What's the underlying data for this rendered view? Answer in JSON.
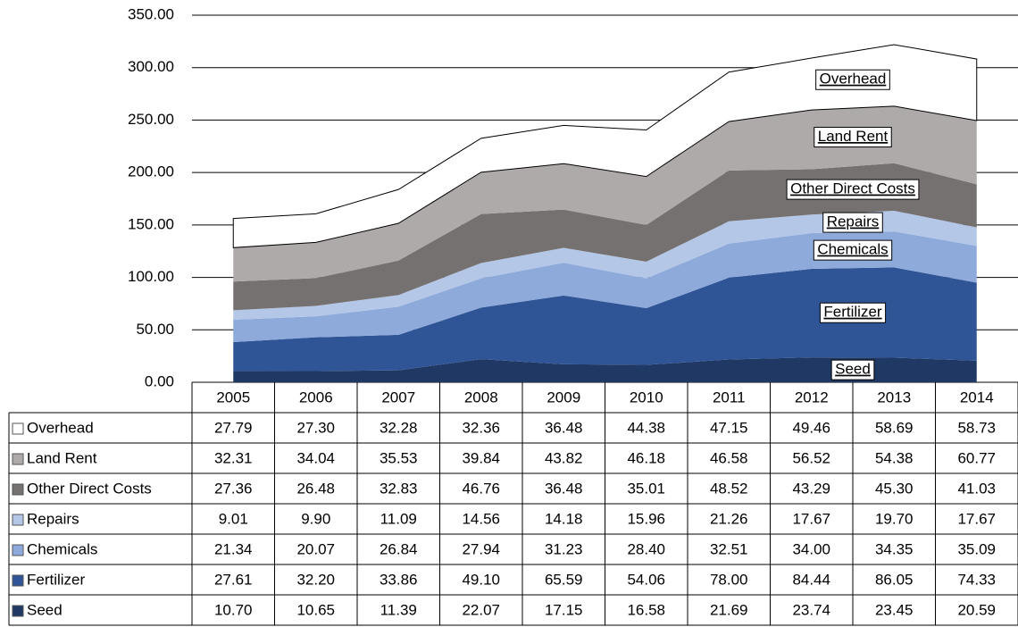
{
  "chart_data": {
    "type": "stacked_area",
    "categories": [
      "2005",
      "2006",
      "2007",
      "2008",
      "2009",
      "2010",
      "2011",
      "2012",
      "2013",
      "2014"
    ],
    "ylim": [
      0,
      350
    ],
    "yticks": [
      {
        "value": 0,
        "label": "0.00"
      },
      {
        "value": 50,
        "label": "50.00"
      },
      {
        "value": 100,
        "label": "100.00"
      },
      {
        "value": 150,
        "label": "150.00"
      },
      {
        "value": 200,
        "label": "200.00"
      },
      {
        "value": 250,
        "label": "250.00"
      },
      {
        "value": 300,
        "label": "300.00"
      },
      {
        "value": 350,
        "label": "350.00"
      }
    ],
    "grid": true,
    "series": [
      {
        "name": "Overhead",
        "color": "#ffffff",
        "values": [
          27.79,
          27.3,
          32.28,
          32.36,
          36.48,
          44.38,
          47.15,
          49.46,
          58.69,
          58.73
        ],
        "value_labels": [
          "27.79",
          "27.30",
          "32.28",
          "32.36",
          "36.48",
          "44.38",
          "47.15",
          "49.46",
          "58.69",
          "58.73"
        ]
      },
      {
        "name": "Land Rent",
        "color": "#aeaaaa",
        "values": [
          32.31,
          34.04,
          35.53,
          39.84,
          43.82,
          46.18,
          46.58,
          56.52,
          54.38,
          60.77
        ],
        "value_labels": [
          "32.31",
          "34.04",
          "35.53",
          "39.84",
          "43.82",
          "46.18",
          "46.58",
          "56.52",
          "54.38",
          "60.77"
        ]
      },
      {
        "name": "Other Direct Costs",
        "color": "#767171",
        "values": [
          27.36,
          26.48,
          32.83,
          46.76,
          36.48,
          35.01,
          48.52,
          43.29,
          45.3,
          41.03
        ],
        "value_labels": [
          "27.36",
          "26.48",
          "32.83",
          "46.76",
          "36.48",
          "35.01",
          "48.52",
          "43.29",
          "45.30",
          "41.03"
        ]
      },
      {
        "name": "Repairs",
        "color": "#b4c7e7",
        "values": [
          9.01,
          9.9,
          11.09,
          14.56,
          14.18,
          15.96,
          21.26,
          17.67,
          19.7,
          17.67
        ],
        "value_labels": [
          "9.01",
          "9.90",
          "11.09",
          "14.56",
          "14.18",
          "15.96",
          "21.26",
          "17.67",
          "19.70",
          "17.67"
        ]
      },
      {
        "name": "Chemicals",
        "color": "#8eaadb",
        "values": [
          21.34,
          20.07,
          26.84,
          27.94,
          31.23,
          28.4,
          32.51,
          34.0,
          34.35,
          35.09
        ],
        "value_labels": [
          "21.34",
          "20.07",
          "26.84",
          "27.94",
          "31.23",
          "28.40",
          "32.51",
          "34.00",
          "34.35",
          "35.09"
        ]
      },
      {
        "name": "Fertilizer",
        "color": "#2f5597",
        "values": [
          27.61,
          32.2,
          33.86,
          49.1,
          65.59,
          54.06,
          78.0,
          84.44,
          86.05,
          74.33
        ],
        "value_labels": [
          "27.61",
          "32.20",
          "33.86",
          "49.10",
          "65.59",
          "54.06",
          "78.00",
          "84.44",
          "86.05",
          "74.33"
        ]
      },
      {
        "name": "Seed",
        "color": "#203864",
        "values": [
          10.7,
          10.65,
          11.39,
          22.07,
          17.15,
          16.58,
          21.69,
          23.74,
          23.45,
          20.59
        ],
        "value_labels": [
          "10.70",
          "10.65",
          "11.39",
          "22.07",
          "17.15",
          "16.58",
          "21.69",
          "23.74",
          "23.45",
          "20.59"
        ]
      }
    ]
  }
}
